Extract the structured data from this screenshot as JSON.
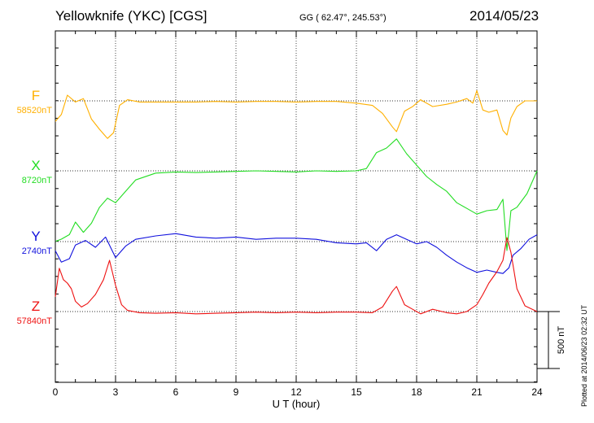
{
  "header": {
    "station": "Yellowknife (YKC)  [CGS]",
    "coords": "GG ( 62.47°, 245.53°)",
    "date": "2014/05/23"
  },
  "plotted_note": "Plotted at 2014/06/23 02:32 UT",
  "scale_bar_label": "500 nT",
  "chart_data": {
    "type": "line",
    "title": "Yellowknife (YKC)  [CGS]",
    "xlabel": "U T (hour)",
    "ylabel": "",
    "xlim": [
      0,
      24
    ],
    "x_ticks": [
      "0",
      "3",
      "6",
      "9",
      "12",
      "15",
      "18",
      "21",
      "24"
    ],
    "grid": true,
    "scale_bar_nT": 500,
    "series": [
      {
        "name": "F",
        "baseline_label": "58520nT",
        "color": "#ffb000",
        "x": [
          0,
          0.3,
          0.6,
          1.0,
          1.4,
          1.8,
          2.2,
          2.6,
          2.9,
          3.2,
          3.6,
          4.2,
          5,
          6,
          7,
          8,
          9,
          10,
          11,
          12,
          13,
          14,
          15,
          15.8,
          16.3,
          16.8,
          17.0,
          17.4,
          17.8,
          18.2,
          18.8,
          19.5,
          20.0,
          20.5,
          20.8,
          21.0,
          21.3,
          21.6,
          22.0,
          22.3,
          22.5,
          22.7,
          23.0,
          23.4,
          24
        ],
        "values": [
          180,
          120,
          -50,
          10,
          -20,
          160,
          250,
          330,
          280,
          40,
          -10,
          10,
          10,
          10,
          10,
          5,
          10,
          5,
          5,
          10,
          5,
          5,
          20,
          40,
          110,
          230,
          270,
          90,
          50,
          -10,
          50,
          30,
          10,
          -20,
          20,
          -90,
          80,
          100,
          80,
          260,
          300,
          150,
          50,
          0,
          0
        ]
      },
      {
        "name": "X",
        "baseline_label": "8720nT",
        "color": "#22dd22",
        "x": [
          0,
          0.3,
          0.7,
          1.0,
          1.4,
          1.8,
          2.2,
          2.6,
          3.0,
          3.5,
          4.0,
          5,
          6,
          7,
          8,
          9,
          10,
          11,
          12,
          13,
          14,
          15,
          15.5,
          16.0,
          16.5,
          17.0,
          17.5,
          18.0,
          18.5,
          19.0,
          19.5,
          20.0,
          20.5,
          21.0,
          21.5,
          22.0,
          22.3,
          22.5,
          22.7,
          23.0,
          23.5,
          24
        ],
        "values": [
          620,
          600,
          560,
          450,
          540,
          460,
          320,
          240,
          280,
          180,
          80,
          20,
          10,
          15,
          10,
          5,
          0,
          5,
          10,
          0,
          5,
          0,
          -20,
          -160,
          -200,
          -280,
          -150,
          -50,
          50,
          120,
          180,
          280,
          330,
          380,
          350,
          340,
          250,
          700,
          350,
          320,
          200,
          0
        ]
      },
      {
        "name": "Y",
        "baseline_label": "2740nT",
        "color": "#1010dd",
        "x": [
          0,
          0.3,
          0.7,
          1.0,
          1.5,
          2.0,
          2.5,
          3.0,
          3.5,
          4.0,
          5,
          6,
          7,
          8,
          9,
          10,
          11,
          12,
          13,
          14,
          15,
          15.5,
          16.0,
          16.5,
          17.0,
          17.5,
          18.0,
          18.5,
          19.0,
          19.5,
          20.0,
          20.5,
          21.0,
          21.5,
          22.0,
          22.3,
          22.6,
          22.8,
          23.2,
          23.6,
          24
        ],
        "values": [
          80,
          180,
          150,
          30,
          -10,
          50,
          -40,
          140,
          40,
          -20,
          -50,
          -70,
          -40,
          -30,
          -40,
          -20,
          -30,
          -30,
          -20,
          10,
          20,
          10,
          80,
          -20,
          -60,
          -20,
          20,
          0,
          50,
          120,
          180,
          230,
          270,
          250,
          270,
          280,
          230,
          120,
          60,
          -20,
          -60
        ]
      },
      {
        "name": "Z",
        "baseline_label": "57840nT",
        "color": "#ee1111",
        "x": [
          0,
          0.2,
          0.4,
          0.6,
          0.8,
          1.0,
          1.3,
          1.6,
          2.0,
          2.4,
          2.7,
          3.0,
          3.3,
          3.6,
          4.2,
          5,
          6,
          7,
          8,
          9,
          10,
          11,
          12,
          13,
          14,
          15,
          15.8,
          16.3,
          16.8,
          17.0,
          17.4,
          17.8,
          18.2,
          18.8,
          19.5,
          20.0,
          20.5,
          21.0,
          21.3,
          21.6,
          22.0,
          22.3,
          22.5,
          22.7,
          23.0,
          23.4,
          24
        ],
        "values": [
          -130,
          -380,
          -280,
          -250,
          -200,
          -90,
          -40,
          -70,
          -150,
          -280,
          -450,
          -230,
          -60,
          -10,
          10,
          15,
          10,
          20,
          15,
          10,
          5,
          10,
          5,
          10,
          5,
          5,
          10,
          -40,
          -180,
          -220,
          -60,
          -20,
          20,
          -20,
          10,
          20,
          0,
          -60,
          -150,
          -250,
          -350,
          -450,
          -650,
          -520,
          -200,
          -50,
          0
        ]
      }
    ]
  }
}
